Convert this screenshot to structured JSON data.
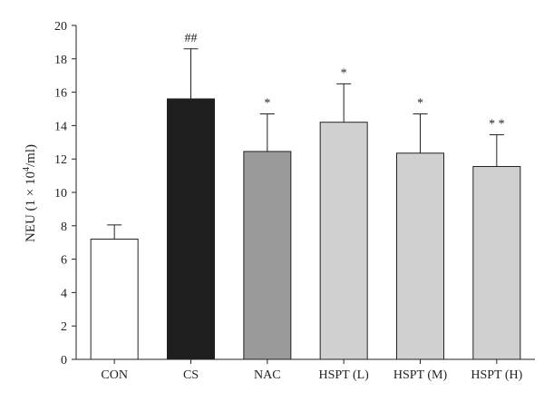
{
  "chart_data": {
    "type": "bar",
    "categories": [
      "CON",
      "CS",
      "NAC",
      "HSPT (L)",
      "HSPT (M)",
      "HSPT (H)"
    ],
    "values": [
      7.2,
      15.6,
      12.45,
      14.2,
      12.35,
      11.55
    ],
    "errors": [
      0.85,
      3.0,
      2.25,
      2.3,
      2.35,
      1.9
    ],
    "annotations": [
      "",
      "##",
      "*",
      "*",
      "*",
      "* *"
    ],
    "bar_colors": [
      "#ffffff",
      "#1e1e1e",
      "#9a9a9a",
      "#d0d0d0",
      "#d0d0d0",
      "#d0d0d0"
    ],
    "ylabel": {
      "prefix": "NEU (1 × 10",
      "sup": "4",
      "suffix": "/ml)"
    },
    "ylim": [
      0,
      20
    ],
    "yticks": [
      0,
      2,
      4,
      6,
      8,
      10,
      12,
      14,
      16,
      18,
      20
    ],
    "grid": false,
    "legend": "none"
  }
}
